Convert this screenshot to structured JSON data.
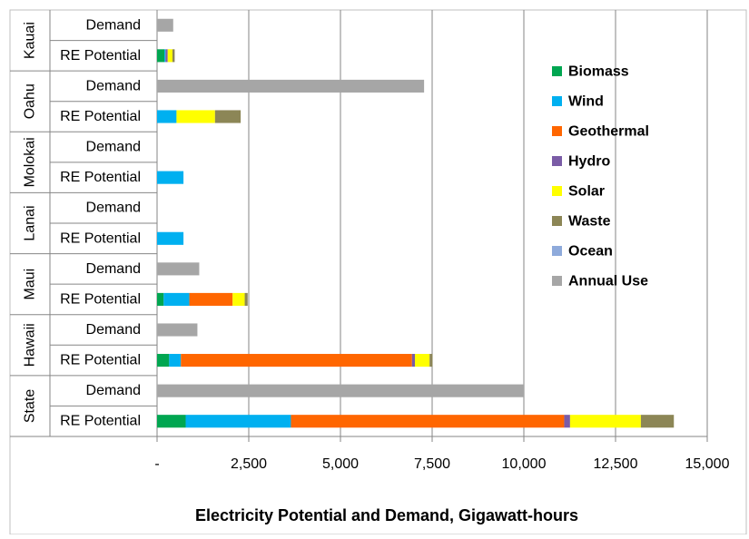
{
  "chart_data": {
    "type": "bar",
    "orientation": "horizontal",
    "stacked": true,
    "xlabel": "Electricity Potential and Demand, Gigawatt-hours",
    "xlim": [
      0,
      15000
    ],
    "xticks": [
      0,
      2500,
      5000,
      7500,
      10000,
      12500,
      15000
    ],
    "xtick_labels": [
      "-",
      "2,500",
      "5,000",
      "7,500",
      "10,000",
      "12,500",
      "15,000"
    ],
    "grid": true,
    "legend_position": "top-right",
    "groups": [
      "Kauai",
      "Oahu",
      "Molokai",
      "Lanai",
      "Maui",
      "Hawaii",
      "State"
    ],
    "row_labels": [
      "Demand",
      "RE Potential"
    ],
    "categories": [
      "Kauai Demand",
      "Kauai RE Potential",
      "Oahu Demand",
      "Oahu RE Potential",
      "Molokai Demand",
      "Molokai RE Potential",
      "Lanai Demand",
      "Lanai RE Potential",
      "Maui Demand",
      "Maui RE Potential",
      "Hawaii Demand",
      "Hawaii RE Potential",
      "State Demand",
      "State RE Potential"
    ],
    "series": [
      {
        "name": "Biomass",
        "color": "#00a651",
        "values": [
          0,
          200,
          0,
          0,
          0,
          0,
          0,
          0,
          0,
          180,
          0,
          330,
          0,
          780
        ]
      },
      {
        "name": "Wind",
        "color": "#00b0f0",
        "values": [
          0,
          30,
          0,
          530,
          0,
          720,
          0,
          720,
          0,
          700,
          0,
          320,
          0,
          2870
        ]
      },
      {
        "name": "Geothermal",
        "color": "#ff6600",
        "values": [
          0,
          0,
          0,
          0,
          0,
          0,
          0,
          0,
          0,
          1180,
          0,
          6300,
          0,
          7450
        ]
      },
      {
        "name": "Hydro",
        "color": "#7a5ca6",
        "values": [
          0,
          60,
          0,
          0,
          0,
          0,
          0,
          0,
          0,
          0,
          0,
          80,
          0,
          160
        ]
      },
      {
        "name": "Solar",
        "color": "#ffff00",
        "values": [
          0,
          130,
          0,
          1050,
          0,
          0,
          0,
          0,
          0,
          330,
          0,
          400,
          0,
          1930
        ]
      },
      {
        "name": "Waste",
        "color": "#8c8656",
        "values": [
          0,
          60,
          0,
          700,
          0,
          0,
          0,
          0,
          0,
          80,
          0,
          80,
          0,
          900
        ]
      },
      {
        "name": "Ocean",
        "color": "#8eaadb",
        "values": [
          0,
          0,
          0,
          0,
          0,
          0,
          0,
          0,
          0,
          0,
          0,
          0,
          0,
          0
        ]
      },
      {
        "name": "Annual Use",
        "color": "#a6a6a6",
        "values": [
          440,
          0,
          7280,
          0,
          0,
          0,
          0,
          0,
          1150,
          0,
          1100,
          0,
          10000,
          0
        ]
      }
    ]
  }
}
